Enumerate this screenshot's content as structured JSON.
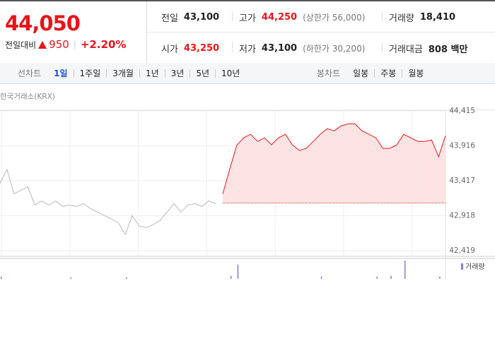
{
  "header": {
    "price": "44,050",
    "change": {
      "label": "전일대비",
      "amount": "950",
      "percent": "+2.20%"
    }
  },
  "stats": [
    [
      {
        "label": "전일",
        "value": "43,100"
      },
      {
        "label": "고가",
        "value": "44,250",
        "note": "(상한가 56,000)"
      },
      {
        "label": "거래량",
        "value": "18,410"
      }
    ],
    [
      {
        "label": "시가",
        "value": "43,250"
      },
      {
        "label": "저가",
        "value": "43,100",
        "note": "(하한가 30,200)"
      },
      {
        "label": "거래대금",
        "value": "808 백만"
      }
    ]
  ],
  "toolbar": {
    "line_label": "선차트",
    "line_periods": [
      "1일",
      "1주일",
      "3개월",
      "1년",
      "3년",
      "5년",
      "10년"
    ],
    "active_period": 0,
    "candle_label": "봉차트",
    "candle_periods": [
      "일봉",
      "주봉",
      "월봉"
    ]
  },
  "chart_data": {
    "type": "line",
    "subtitle": "한국거래소(KRX)",
    "xlim": [
      0,
      64
    ],
    "ylim": [
      42419,
      44415
    ],
    "yticks": [
      {
        "value": 44415,
        "label": "44,415"
      },
      {
        "value": 43916,
        "label": "43,916"
      },
      {
        "value": 43417,
        "label": "43,417"
      },
      {
        "value": 42918,
        "label": "42,918"
      },
      {
        "value": 42419,
        "label": "42,419"
      }
    ],
    "grid": true,
    "baseline": 43100,
    "baseline_color": "#c0392b",
    "series": [
      {
        "color": "#b8b8b8",
        "x": [
          0,
          1,
          2,
          3,
          4,
          5,
          6,
          7,
          8,
          9,
          10,
          11,
          12,
          13,
          14,
          15,
          16,
          17,
          18,
          19,
          20,
          21,
          22,
          23,
          24,
          25,
          26,
          27,
          28,
          29,
          30,
          31
        ],
        "values": [
          43380,
          43580,
          43230,
          43280,
          43330,
          43070,
          43130,
          43070,
          43130,
          43050,
          43070,
          43050,
          43090,
          43020,
          42970,
          42920,
          42870,
          42820,
          42650,
          42920,
          42770,
          42750,
          42790,
          42850,
          42970,
          43090,
          42970,
          43070,
          43090,
          43050,
          43130,
          43090
        ]
      },
      {
        "color": "#e8141b",
        "fill": "#fde3e3",
        "x": [
          32,
          33,
          34,
          35,
          36,
          37,
          38,
          39,
          40,
          41,
          42,
          43,
          44,
          45,
          46,
          47,
          48,
          49,
          50,
          51,
          52,
          53,
          54,
          55,
          56,
          57,
          58,
          59,
          60,
          61,
          62,
          63,
          64
        ],
        "values": [
          43230,
          43580,
          43920,
          44030,
          44080,
          43980,
          44030,
          43930,
          44030,
          44080,
          43930,
          43850,
          43880,
          43980,
          44080,
          44160,
          44130,
          44200,
          44230,
          44230,
          44130,
          44080,
          44030,
          43880,
          43880,
          43930,
          44080,
          44030,
          43980,
          43980,
          44000,
          43760,
          44060
        ]
      }
    ],
    "volume": {
      "name": "거래량",
      "color": "#8e7cc3",
      "x": [
        0,
        10,
        18,
        33,
        34,
        46,
        54,
        56,
        58,
        63
      ],
      "values": [
        300,
        200,
        200,
        400,
        1800,
        300,
        300,
        400,
        2300,
        300
      ]
    }
  }
}
